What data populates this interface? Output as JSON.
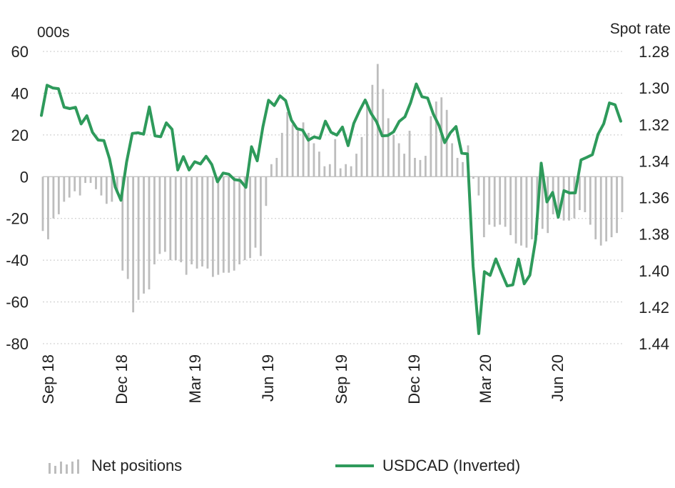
{
  "chart_data": {
    "type": "bar+line",
    "left_axis_unit": "000s",
    "right_axis_unit": "Spot rate",
    "y_left": {
      "min": -80,
      "max": 60,
      "ticks": [
        "60",
        "40",
        "20",
        "0",
        "-20",
        "-40",
        "-60",
        "-80"
      ]
    },
    "y_right": {
      "min": 1.28,
      "max": 1.44,
      "inverted": true,
      "ticks": [
        "1.28",
        "1.30",
        "1.32",
        "1.34",
        "1.36",
        "1.38",
        "1.40",
        "1.42",
        "1.44"
      ]
    },
    "x_labels": [
      "Sep 18",
      "Dec 18",
      "Mar 19",
      "Jun 19",
      "Sep 19",
      "Dec 19",
      "Mar 20",
      "Jun 20"
    ],
    "grid": true,
    "legend": "bottom",
    "colors": {
      "bars": "#bdbdbd",
      "line": "#2e9a5b",
      "grid": "#c8c8c8"
    },
    "series": [
      {
        "name": "Net positions",
        "kind": "bar",
        "values": [
          -26,
          -30,
          -20,
          -18,
          -12,
          -10,
          -7,
          -9,
          -3,
          -3,
          -6,
          -9,
          -13,
          -12,
          -8,
          -45,
          -49,
          -65,
          -59,
          -56,
          -54,
          -42,
          -37,
          -36,
          -40,
          -40,
          -41,
          -47,
          -42,
          -44,
          -43,
          -44,
          -48,
          -47,
          -46,
          -46,
          -45,
          -42,
          -40,
          -39,
          -34,
          -38,
          -14,
          6,
          9,
          21,
          31,
          25,
          23,
          26,
          21,
          16,
          12,
          5,
          6,
          18,
          4,
          6,
          5,
          11,
          19,
          36,
          44,
          54,
          42,
          28,
          20,
          16,
          11,
          22,
          9,
          8,
          10,
          29,
          36,
          38,
          32,
          16,
          9,
          7,
          15,
          -1,
          -9,
          -29,
          -23,
          -24,
          -23,
          -24,
          -28,
          -32,
          -33,
          -34,
          -30,
          -28,
          -25,
          -27,
          -18,
          -17,
          -21,
          -21,
          -20,
          -16,
          -17,
          -23,
          -30,
          -33,
          -31,
          -29,
          -27,
          -17
        ]
      },
      {
        "name": "USDCAD (Inverted)",
        "kind": "line",
        "values": [
          1.315,
          1.2985,
          1.3,
          1.3004,
          1.3105,
          1.3113,
          1.3106,
          1.3197,
          1.3152,
          1.3243,
          1.3285,
          1.3288,
          1.3388,
          1.3542,
          1.3615,
          1.3406,
          1.3249,
          1.3245,
          1.3253,
          1.3104,
          1.3262,
          1.3267,
          1.3191,
          1.3226,
          1.3449,
          1.3376,
          1.3449,
          1.3404,
          1.3416,
          1.3374,
          1.3419,
          1.3514,
          1.3466,
          1.3472,
          1.3502,
          1.3506,
          1.3544,
          1.3322,
          1.3399,
          1.3212,
          1.3067,
          1.3096,
          1.3043,
          1.3069,
          1.3175,
          1.3223,
          1.3231,
          1.3286,
          1.3268,
          1.3276,
          1.3182,
          1.3243,
          1.3258,
          1.3214,
          1.3316,
          1.3194,
          1.3126,
          1.3066,
          1.3137,
          1.3185,
          1.3262,
          1.326,
          1.324,
          1.3183,
          1.3158,
          1.308,
          1.2978,
          1.3048,
          1.3055,
          1.3143,
          1.3206,
          1.3299,
          1.3245,
          1.3211,
          1.3357,
          1.3361,
          1.3975,
          1.4345,
          1.4006,
          1.4026,
          1.3936,
          1.4011,
          1.4084,
          1.4078,
          1.3937,
          1.4072,
          1.4025,
          1.3832,
          1.3412,
          1.3624,
          1.3572,
          1.3708,
          1.3562,
          1.3575,
          1.3574,
          1.3394,
          1.338,
          1.3365,
          1.3253,
          1.3196,
          1.3082,
          1.3092,
          1.3182
        ]
      }
    ]
  }
}
